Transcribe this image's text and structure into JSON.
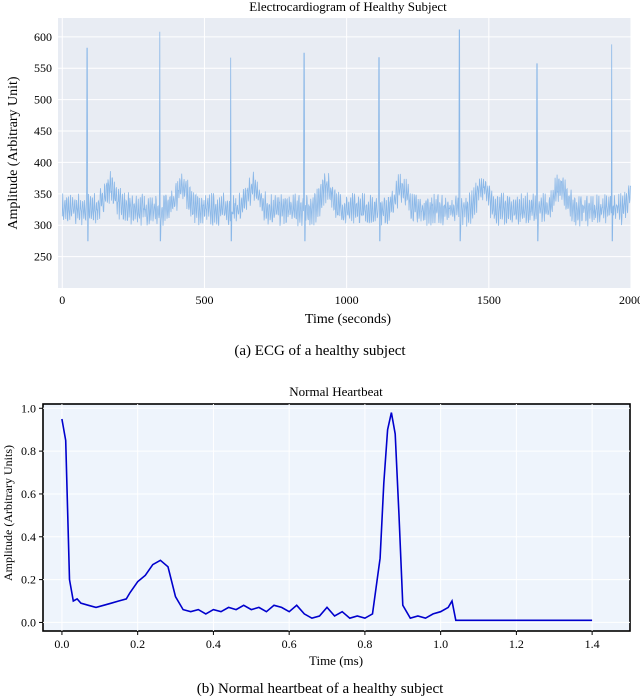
{
  "chart_data": [
    {
      "type": "line",
      "title": "Electrocardiogram of Healthy Subject",
      "xlabel": "Time (seconds)",
      "ylabel": "Amplitude (Arbitrary Unit)",
      "xlim": [
        -15,
        2000
      ],
      "ylim": [
        200,
        630
      ],
      "x_ticks": [
        "0",
        "500",
        "1000",
        "1500",
        "2000"
      ],
      "y_ticks": [
        "250",
        "300",
        "350",
        "400",
        "450",
        "500",
        "550",
        "600"
      ],
      "grid": true,
      "colors": {
        "background": "#e8ecf3",
        "line": "#8bb8e8",
        "grid": "#ffffff"
      },
      "series": [
        {
          "values": {
            "r_peak_times": [
              88,
              343,
              592,
              850,
              1114,
              1397,
              1670,
              1932
            ],
            "r_peak_amplitudes": [
              582,
              608,
              567,
              574,
              567,
              611,
              557,
              588
            ],
            "baseline_min": 270,
            "baseline_max": 390
          }
        }
      ]
    },
    {
      "type": "line",
      "title": "Normal Heartbeat",
      "xlabel": "Time (ms)",
      "ylabel": "Amplitude (Arbitrary Units)",
      "xlim": [
        -0.05,
        1.5
      ],
      "ylim": [
        -0.04,
        1.02
      ],
      "x_ticks": [
        "0.0",
        "0.2",
        "0.4",
        "0.6",
        "0.8",
        "1.0",
        "1.2",
        "1.4"
      ],
      "y_ticks": [
        "0.0",
        "0.2",
        "0.4",
        "0.6",
        "0.8",
        "1.0"
      ],
      "grid": true,
      "colors": {
        "background": "#eef4fc",
        "line": "#0000cd",
        "grid": "#ffffff"
      },
      "series": [
        {
          "x": [
            0.0,
            0.01,
            0.02,
            0.03,
            0.04,
            0.05,
            0.07,
            0.09,
            0.11,
            0.13,
            0.15,
            0.17,
            0.18,
            0.2,
            0.22,
            0.24,
            0.26,
            0.28,
            0.3,
            0.32,
            0.34,
            0.36,
            0.38,
            0.4,
            0.42,
            0.44,
            0.46,
            0.48,
            0.5,
            0.52,
            0.54,
            0.56,
            0.58,
            0.6,
            0.62,
            0.64,
            0.66,
            0.68,
            0.7,
            0.72,
            0.74,
            0.76,
            0.78,
            0.8,
            0.82,
            0.84,
            0.85,
            0.86,
            0.87,
            0.88,
            0.89,
            0.9,
            0.92,
            0.94,
            0.96,
            0.98,
            1.0,
            1.02,
            1.03,
            1.04,
            1.1,
            1.2,
            1.3,
            1.4
          ],
          "y": [
            0.95,
            0.85,
            0.2,
            0.1,
            0.11,
            0.09,
            0.08,
            0.07,
            0.08,
            0.09,
            0.1,
            0.11,
            0.14,
            0.19,
            0.22,
            0.27,
            0.29,
            0.26,
            0.12,
            0.06,
            0.05,
            0.06,
            0.04,
            0.06,
            0.05,
            0.07,
            0.06,
            0.08,
            0.06,
            0.07,
            0.05,
            0.08,
            0.07,
            0.05,
            0.08,
            0.04,
            0.02,
            0.03,
            0.07,
            0.03,
            0.05,
            0.02,
            0.03,
            0.02,
            0.04,
            0.3,
            0.65,
            0.9,
            0.98,
            0.88,
            0.5,
            0.08,
            0.02,
            0.03,
            0.02,
            0.04,
            0.05,
            0.07,
            0.1,
            0.01,
            0.01,
            0.01,
            0.01,
            0.01
          ]
        }
      ]
    }
  ],
  "captions": {
    "a": "(a)  ECG of a healthy subject",
    "b": "(b)  Normal heartbeat of a healthy subject"
  }
}
